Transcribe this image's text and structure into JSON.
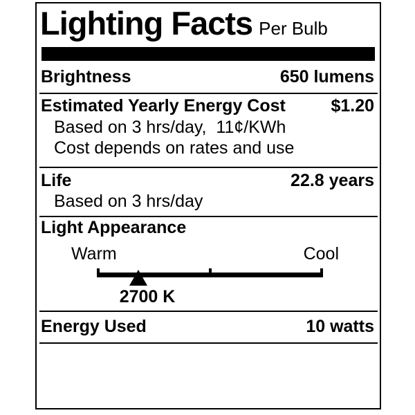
{
  "label": {
    "title": "Lighting Facts",
    "subtitle": "Per Bulb",
    "brightness": {
      "name": "Brightness",
      "value": "650 lumens"
    },
    "energy_cost": {
      "name": "Estimated Yearly Energy Cost",
      "value": "$1.20",
      "note1": "Based on 3 hrs/day,  11¢/KWh",
      "note2": "Cost depends on rates and use"
    },
    "life": {
      "name": "Life",
      "value": "22.8 years",
      "note": "Based on 3 hrs/day"
    },
    "light_appearance": {
      "name": "Light Appearance",
      "scale_left": "Warm",
      "scale_right": "Cool",
      "marker_value": "2700 K"
    },
    "energy_used": {
      "name": "Energy Used",
      "value": "10 watts"
    }
  },
  "colors": {
    "ink": "#000000",
    "background": "#ffffff"
  }
}
